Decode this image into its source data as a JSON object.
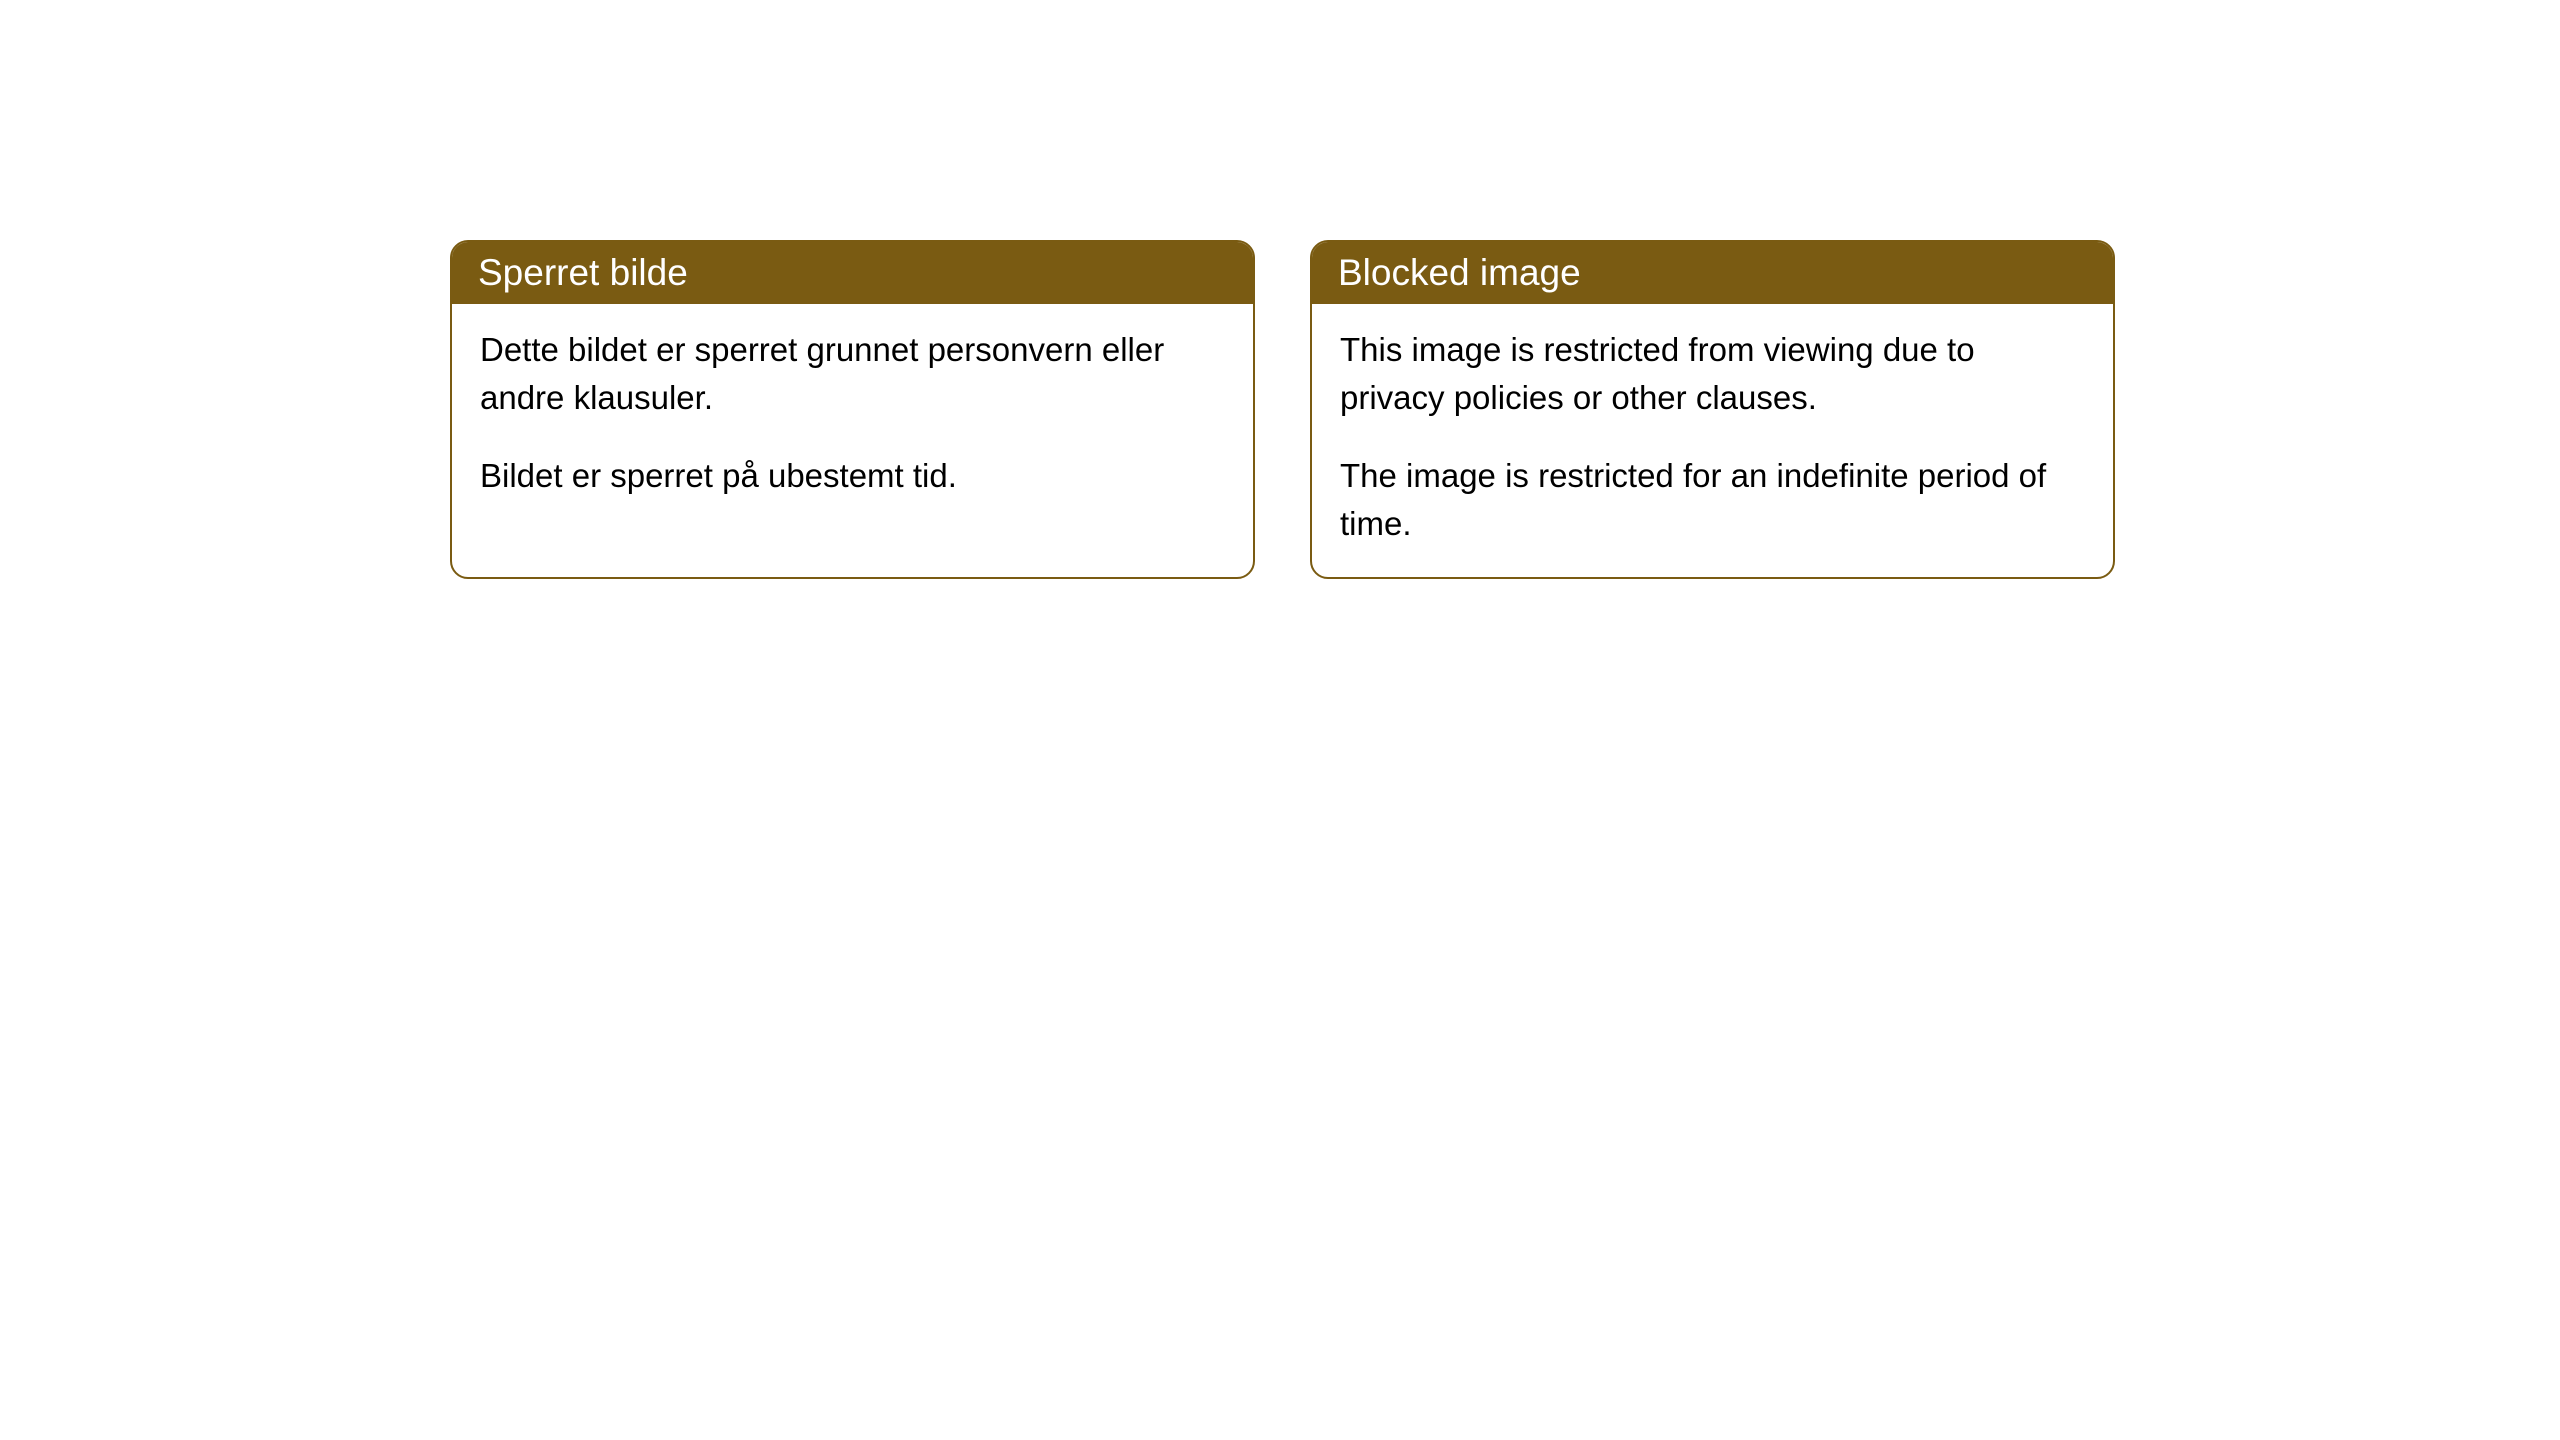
{
  "cards": [
    {
      "title": "Sperret bilde",
      "paragraph1": "Dette bildet er sperret grunnet personvern eller andre klausuler.",
      "paragraph2": "Bildet er sperret på ubestemt tid."
    },
    {
      "title": "Blocked image",
      "paragraph1": "This image is restricted from viewing due to privacy policies or other clauses.",
      "paragraph2": "The image is restricted for an indefinite period of time."
    }
  ],
  "style": {
    "header_background": "#7a5b12",
    "header_text_color": "#ffffff",
    "border_color": "#7a5b12",
    "body_background": "#ffffff",
    "body_text_color": "#000000",
    "border_radius": 18,
    "title_fontsize": 37,
    "body_fontsize": 33
  }
}
